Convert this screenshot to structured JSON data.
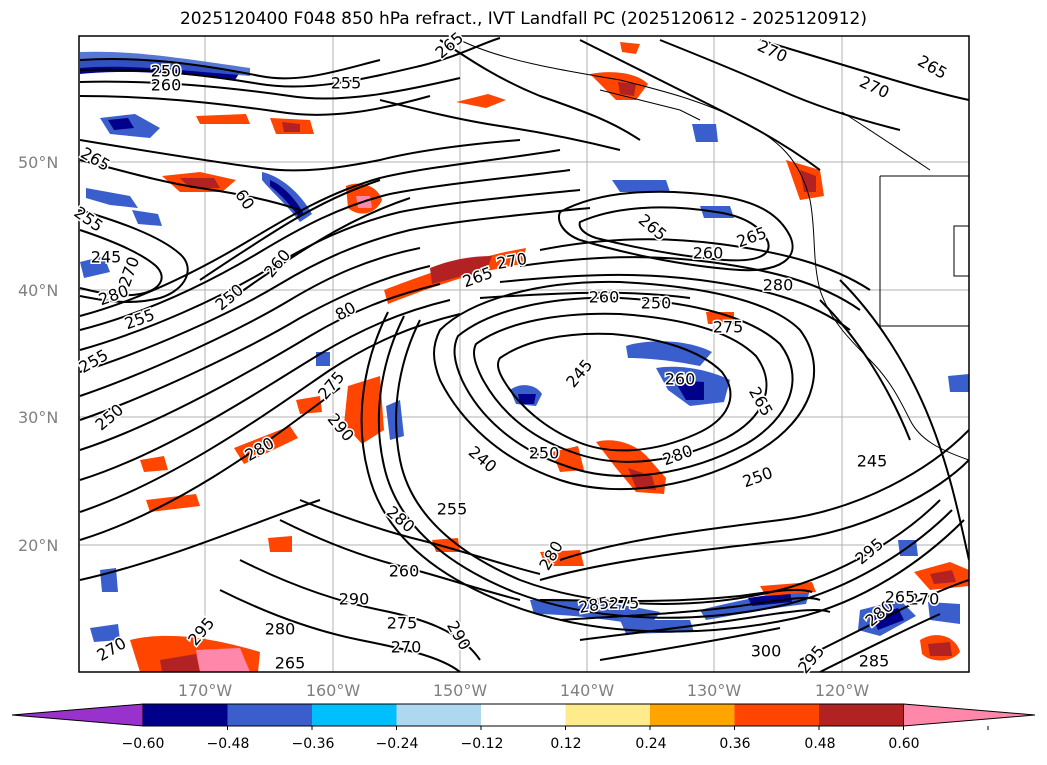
{
  "title": "2025120400 F048 850 hPa refract., IVT Landfall PC (2025120612 - 2025120912)",
  "lat_labels": [
    "50°N",
    "40°N",
    "30°N",
    "20°N"
  ],
  "lon_labels": [
    "170°W",
    "160°W",
    "150°W",
    "140°W",
    "130°W",
    "120°W"
  ],
  "contour_labels": [
    "250",
    "260",
    "255",
    "265",
    "270",
    "265",
    "270",
    "265",
    "255",
    "60",
    "260",
    "270",
    "280",
    "245",
    "255",
    "250",
    "80",
    "265",
    "270",
    "265",
    "260",
    "265",
    "260",
    "250",
    "280",
    "255",
    "275",
    "250",
    "275",
    "290",
    "280",
    "245",
    "260",
    "265",
    "250",
    "240",
    "280",
    "250",
    "245",
    "255",
    "280",
    "260",
    "290",
    "275",
    "270",
    "290",
    "280",
    "285",
    "275",
    "295",
    "270",
    "300",
    "295",
    "285",
    "280",
    "295",
    "265",
    "280",
    "270",
    "265",
    "285"
  ],
  "colorbar": {
    "tick_labels": [
      "−0.60",
      "−0.48",
      "−0.36",
      "−0.24",
      "−0.12",
      "0.12",
      "0.24",
      "0.36",
      "0.48",
      "0.60"
    ],
    "colors": [
      "#9932cc",
      "#00008b",
      "#3a5fcd",
      "#00bfff",
      "#add8f0",
      "#ffffff",
      "#ffeb8b",
      "#ffa500",
      "#ff4500",
      "#b22222",
      "#ff88aa"
    ]
  }
}
